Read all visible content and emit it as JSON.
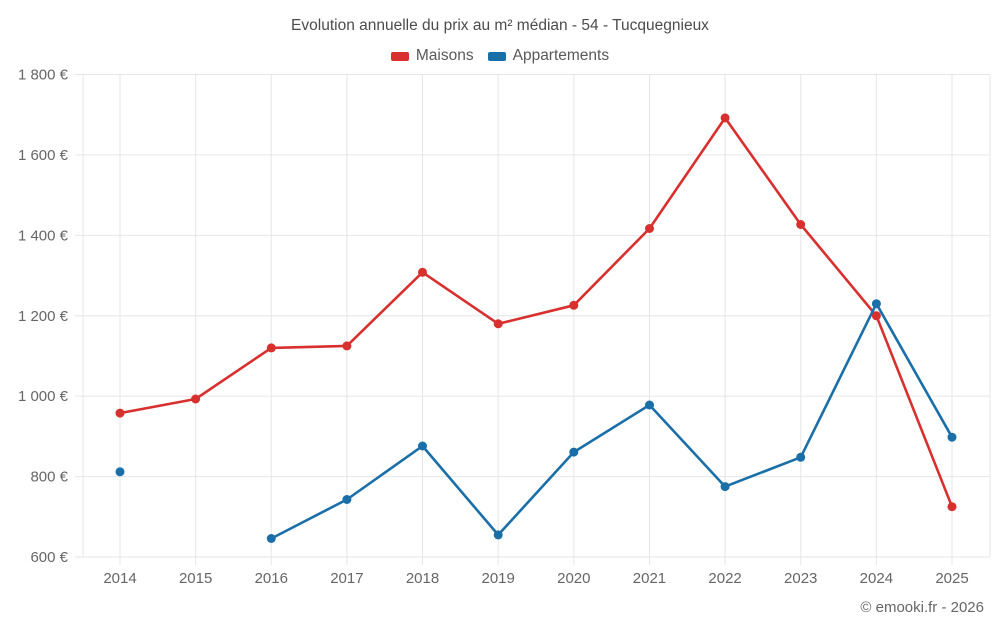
{
  "chart": {
    "title": "Evolution annuelle du prix au m² médian - 54 - Tucquegnieux",
    "footer": "© emooki.fr - 2026",
    "colors": {
      "maisons": "#d8302f",
      "appartements": "#1a6fa8",
      "grid": "#e6e6e6",
      "tick_text": "#666666",
      "title_text": "#4c4c4c"
    }
  },
  "chart_data": {
    "type": "line",
    "x": [
      "2014",
      "2015",
      "2016",
      "2017",
      "2018",
      "2019",
      "2020",
      "2021",
      "2022",
      "2023",
      "2024",
      "2025"
    ],
    "series": [
      {
        "name": "Maisons",
        "color_key": "maisons",
        "values": [
          958,
          993,
          1120,
          1125,
          1308,
          1180,
          1226,
          1417,
          1692,
          1427,
          1200,
          725
        ]
      },
      {
        "name": "Appartements",
        "color_key": "appartements",
        "values": [
          812,
          null,
          646,
          743,
          876,
          655,
          861,
          978,
          775,
          848,
          1230,
          898
        ]
      }
    ],
    "ylim": [
      600,
      1800
    ],
    "yticks": [
      {
        "value": 600,
        "label": "600 €"
      },
      {
        "value": 800,
        "label": "800 €"
      },
      {
        "value": 1000,
        "label": "1 000 €"
      },
      {
        "value": 1200,
        "label": "1 200 €"
      },
      {
        "value": 1400,
        "label": "1 400 €"
      },
      {
        "value": 1600,
        "label": "1 600 €"
      },
      {
        "value": 1800,
        "label": "1 800 €"
      }
    ],
    "xlabel": "",
    "ylabel": "",
    "grid": true,
    "legend_position": "top"
  }
}
